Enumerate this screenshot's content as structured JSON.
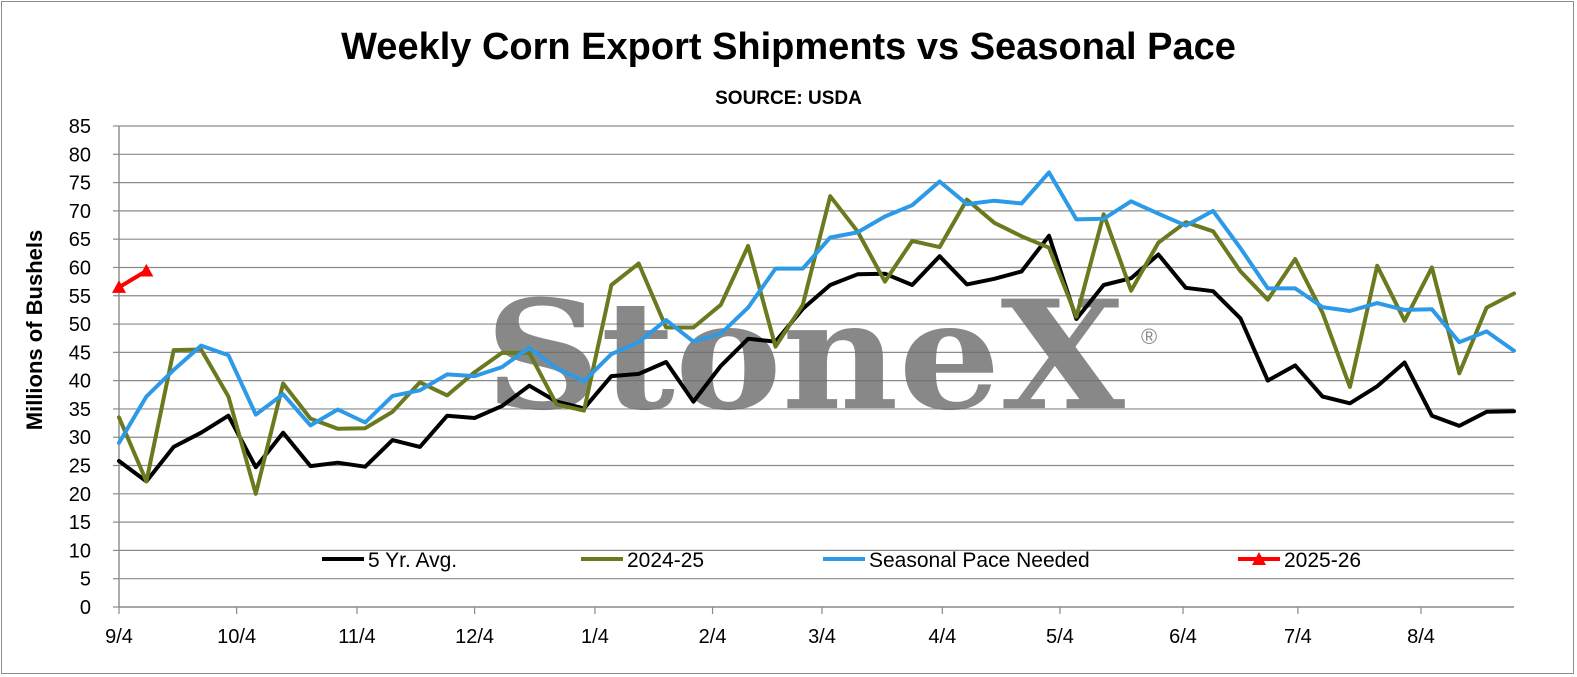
{
  "chart_data": {
    "type": "line",
    "title": "Weekly Corn Export Shipments vs Seasonal Pace",
    "subtitle": "SOURCE: USDA",
    "ylabel": "Millions of Bushels",
    "xlabel": "",
    "ylim": [
      0,
      85
    ],
    "yticks": [
      "0",
      "5",
      "10",
      "15",
      "20",
      "25",
      "30",
      "35",
      "40",
      "45",
      "50",
      "55",
      "60",
      "65",
      "70",
      "75",
      "80",
      "85"
    ],
    "x_tick_labels": [
      {
        "label": "9/4",
        "week": 0
      },
      {
        "label": "10/4",
        "week": 4.3
      },
      {
        "label": "11/4",
        "week": 8.7
      },
      {
        "label": "12/4",
        "week": 13
      },
      {
        "label": "1/4",
        "week": 17.4
      },
      {
        "label": "2/4",
        "week": 21.7
      },
      {
        "label": "3/4",
        "week": 25.7
      },
      {
        "label": "4/4",
        "week": 30.1
      },
      {
        "label": "5/4",
        "week": 34.4
      },
      {
        "label": "6/4",
        "week": 38.9
      },
      {
        "label": "7/4",
        "week": 43.1
      },
      {
        "label": "8/4",
        "week": 47.6
      }
    ],
    "week_count": 51,
    "grid": true,
    "legend_position": "bottom-inside",
    "watermark": "StoneX®",
    "series": [
      {
        "name": "5 Yr. Avg.",
        "color": "#000000",
        "marker": "none",
        "values": [
          25.8,
          22.2,
          28.3,
          30.8,
          33.8,
          24.7,
          30.8,
          24.9,
          25.5,
          24.8,
          29.5,
          28.3,
          33.8,
          33.4,
          35.5,
          39.1,
          36.3,
          35.1,
          40.8,
          41.2,
          43.3,
          36.3,
          42.6,
          47.4,
          46.9,
          52.7,
          56.9,
          58.8,
          58.9,
          56.9,
          62.0,
          57.0,
          58.0,
          59.3,
          65.6,
          50.9,
          56.9,
          58.1,
          62.3,
          56.4,
          55.8,
          51.0,
          40.0,
          42.7,
          37.2,
          36.0,
          39.0,
          43.2,
          33.8,
          32.0,
          34.5,
          34.6
        ]
      },
      {
        "name": "2024-25",
        "color": "#6b7a1f",
        "marker": "none",
        "values": [
          33.5,
          22.2,
          45.4,
          45.5,
          37.2,
          20.0,
          39.5,
          33.3,
          31.5,
          31.6,
          34.5,
          39.7,
          37.4,
          41.5,
          44.9,
          44.9,
          35.8,
          34.7,
          56.9,
          60.7,
          49.4,
          49.4,
          53.4,
          63.8,
          46.0,
          53.4,
          72.6,
          66.4,
          57.5,
          64.7,
          63.6,
          72.0,
          67.9,
          65.5,
          63.5,
          51.3,
          69.4,
          55.9,
          64.4,
          68.0,
          66.4,
          59.3,
          54.3,
          61.5,
          52.0,
          38.9,
          60.3,
          50.6,
          60.0,
          41.3,
          52.9,
          55.4
        ]
      },
      {
        "name": "Seasonal Pace Needed",
        "color": "#2d9ae8",
        "marker": "none",
        "values": [
          29.0,
          37.2,
          41.9,
          46.2,
          44.5,
          34.0,
          37.6,
          32.1,
          34.9,
          32.6,
          37.3,
          38.3,
          41.1,
          40.8,
          42.4,
          45.8,
          42.2,
          39.9,
          44.7,
          46.8,
          50.7,
          46.9,
          48.3,
          52.9,
          59.8,
          59.8,
          65.3,
          66.2,
          69.0,
          71.0,
          75.2,
          71.2,
          71.8,
          71.3,
          76.8,
          68.5,
          68.6,
          71.7,
          69.5,
          67.4,
          70.0,
          63.4,
          56.3,
          56.3,
          53.0,
          52.3,
          53.7,
          52.5,
          52.6,
          46.8,
          48.7,
          45.3
        ]
      },
      {
        "name": "2025-26",
        "color": "#ff0000",
        "marker": "triangle",
        "values": [
          56.5,
          59.4
        ]
      }
    ]
  }
}
